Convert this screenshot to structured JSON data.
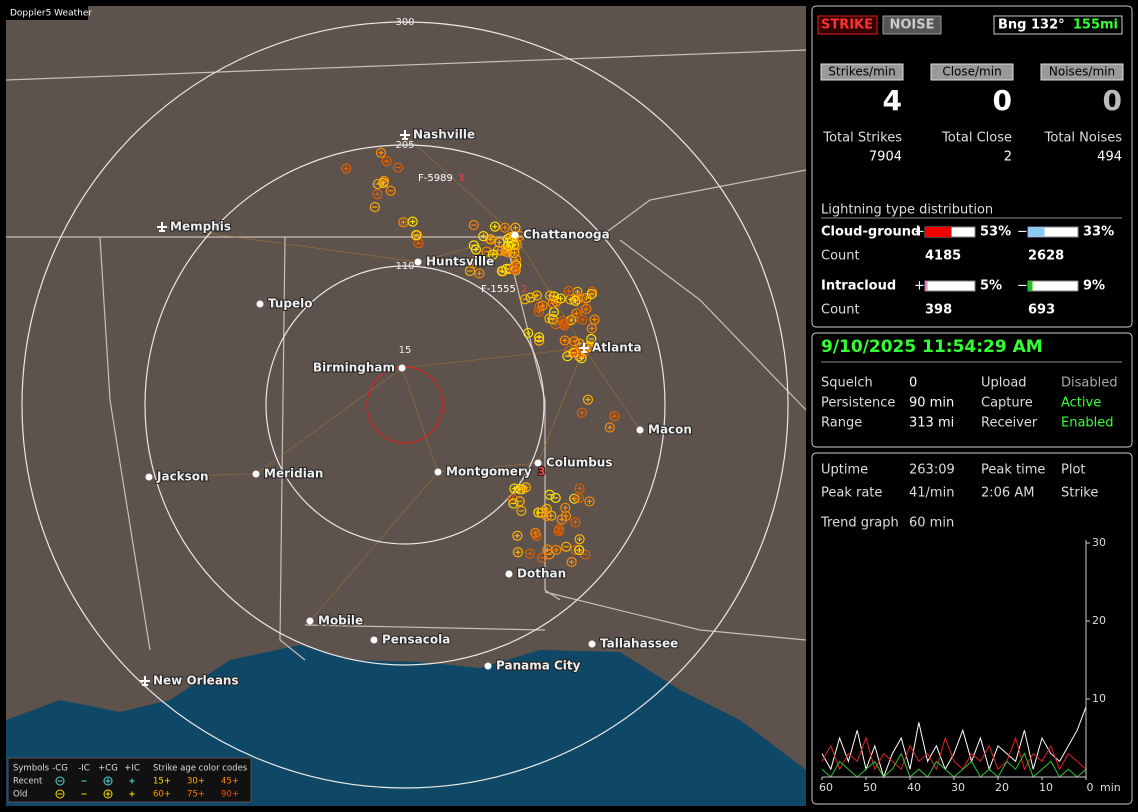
{
  "map": {
    "brand": "Doppler5 Weather",
    "ring_labels": [
      300,
      205,
      110,
      15
    ],
    "cities": [
      {
        "name": "Nashville"
      },
      {
        "name": "Chattanooga"
      },
      {
        "name": "Memphis"
      },
      {
        "name": "Huntsville"
      },
      {
        "name": "Tupelo"
      },
      {
        "name": "Atlanta"
      },
      {
        "name": "Birmingham"
      },
      {
        "name": "Macon"
      },
      {
        "name": "Columbus"
      },
      {
        "name": "Montgomery",
        "count": 3
      },
      {
        "name": "Jackson"
      },
      {
        "name": "Meridian"
      },
      {
        "name": "Dothan"
      },
      {
        "name": "Mobile"
      },
      {
        "name": "Pensacola"
      },
      {
        "name": "Tallahassee"
      },
      {
        "name": "Panama City"
      },
      {
        "name": "New Orleans"
      }
    ],
    "flash_labels": [
      {
        "id": "F-5989",
        "count": 3
      },
      {
        "id": "F-1555",
        "count": 2
      }
    ],
    "legend": {
      "symbols_label": "Symbols",
      "columns": [
        "-CG",
        "-IC",
        "+CG",
        "+IC"
      ],
      "rows": [
        "Recent",
        "Old"
      ],
      "age_title": "Strike age color codes",
      "recent_ages": [
        "15+",
        "30+",
        "45+"
      ],
      "old_ages": [
        "60+",
        "75+",
        "90+"
      ]
    }
  },
  "panel": {
    "buttons": [
      "STRIKE",
      "NOISE"
    ],
    "bearing": "Bng 132°",
    "distance": "155mi",
    "rates": [
      {
        "label": "Strikes/min",
        "value": 4
      },
      {
        "label": "Close/min",
        "value": 0
      },
      {
        "label": "Noises/min",
        "value": 0
      }
    ],
    "totals": [
      {
        "label": "Total Strikes",
        "value": 7904
      },
      {
        "label": "Total Close",
        "value": 2
      },
      {
        "label": "Total Noises",
        "value": 494
      }
    ],
    "distribution": {
      "title": "Lightning type distribution",
      "count_label": "Count",
      "rows": [
        {
          "label": "Cloud-ground",
          "pos_sign": "+",
          "pos": {
            "value": 53,
            "label": "53%"
          },
          "neg_sign": "−",
          "neg": {
            "value": 33,
            "label": "33%"
          },
          "pos_count": 4185,
          "neg_count": 2628
        },
        {
          "label": "Intracloud",
          "pos_sign": "+",
          "pos": {
            "value": 5,
            "label": "5%"
          },
          "neg_sign": "−",
          "neg": {
            "value": 9,
            "label": "9%"
          },
          "pos_count": 398,
          "neg_count": 693
        }
      ]
    },
    "status": {
      "datetime": "9/10/2025 11:54:29 AM",
      "rows": [
        [
          "Squelch",
          0,
          "Upload",
          "Disabled"
        ],
        [
          "Persistence",
          "90 min",
          "Capture",
          "Active"
        ],
        [
          "Range",
          "313 mi",
          "Receiver",
          "Enabled"
        ]
      ]
    },
    "stats": {
      "rows": [
        [
          "Uptime",
          "263:09",
          "Peak time",
          "Plot"
        ],
        [
          "Peak rate",
          "41/min",
          "2:06 AM",
          "Strike"
        ]
      ],
      "trend_label": "Trend graph",
      "trend_period": "60 min"
    },
    "trend": {
      "type": "line",
      "x": [
        60,
        58,
        56,
        54,
        52,
        50,
        48,
        46,
        44,
        42,
        40,
        38,
        36,
        34,
        32,
        30,
        28,
        26,
        24,
        22,
        20,
        18,
        16,
        14,
        12,
        10,
        8,
        6,
        4,
        2,
        0
      ],
      "xlim": [
        60,
        0
      ],
      "ylim": [
        0,
        30
      ],
      "xticks": [
        60,
        50,
        40,
        30,
        20,
        10,
        0
      ],
      "yticks": [
        10,
        20,
        30
      ],
      "x_unit": "min",
      "series": [
        {
          "color": "#ffffff",
          "values": [
            3,
            1,
            5,
            2,
            6,
            1,
            4,
            0,
            3,
            5,
            1,
            7,
            2,
            4,
            1,
            3,
            6,
            2,
            5,
            1,
            4,
            3,
            2,
            6,
            1,
            5,
            3,
            2,
            4,
            6,
            9
          ]
        },
        {
          "color": "#e02020",
          "values": [
            2,
            4,
            1,
            3,
            2,
            5,
            1,
            3,
            2,
            1,
            4,
            2,
            3,
            1,
            5,
            2,
            1,
            3,
            2,
            4,
            1,
            2,
            5,
            1,
            3,
            2,
            4,
            1,
            3,
            2,
            1
          ]
        },
        {
          "color": "#30c030",
          "values": [
            1,
            0,
            2,
            1,
            0,
            1,
            2,
            0,
            1,
            3,
            0,
            1,
            0,
            2,
            1,
            0,
            1,
            2,
            0,
            1,
            0,
            2,
            1,
            3,
            0,
            1,
            2,
            0,
            1,
            0,
            1
          ]
        }
      ]
    }
  }
}
